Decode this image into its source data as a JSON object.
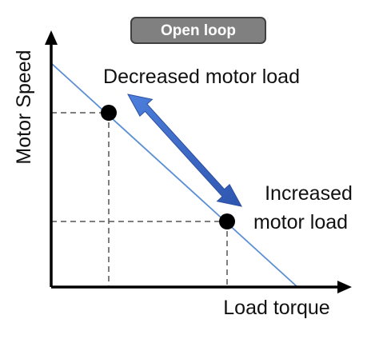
{
  "badge": {
    "label": "Open loop",
    "fill": "#808080",
    "border": "#404040",
    "text_color": "#ffffff"
  },
  "axes": {
    "y_label": "Motor Speed",
    "x_label": "Load torque",
    "color": "#000000"
  },
  "curve": {
    "color": "#5b8fd4"
  },
  "points": {
    "decreased_label": "Decreased motor load",
    "increased_label_line1": "Increased",
    "increased_label_line2": "motor load",
    "dot_color": "#000000"
  },
  "arrow": {
    "color": "#3a66c4"
  }
}
